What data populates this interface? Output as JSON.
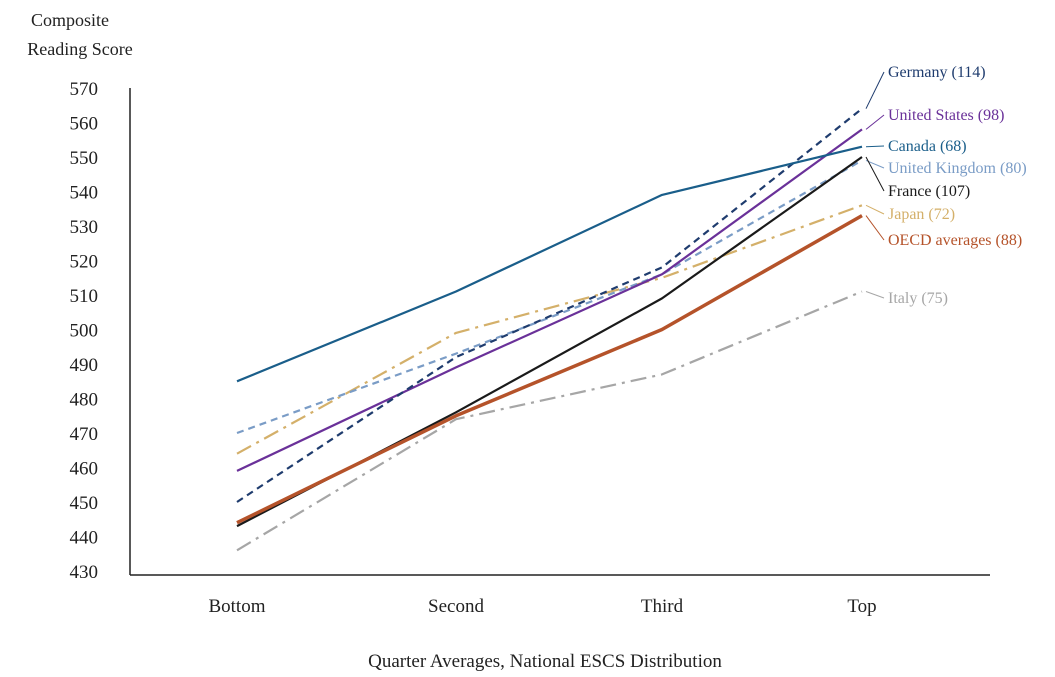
{
  "chart_data": {
    "type": "line",
    "ylabel_lines": [
      "Composite",
      "Reading Score"
    ],
    "xlabel": "Quarter Averages, National ESCS Distribution",
    "categories": [
      "Bottom",
      "Second",
      "Third",
      "Top"
    ],
    "ylim": [
      430,
      570
    ],
    "yticks": [
      430,
      440,
      450,
      460,
      470,
      480,
      490,
      500,
      510,
      520,
      530,
      540,
      550,
      560,
      570
    ],
    "grid": false,
    "legend": "inline labels at right end of each line",
    "series": [
      {
        "name": "Canada (68)",
        "values": [
          485,
          511,
          539,
          553
        ],
        "color": "#1a5e8a",
        "dash": "solid",
        "width": 2.2
      },
      {
        "name": "Germany (114)",
        "values": [
          450,
          492,
          518,
          564
        ],
        "color": "#1f3c6e",
        "dash": "dashed",
        "width": 2.2
      },
      {
        "name": "United States (98)",
        "values": [
          459,
          489,
          516,
          558
        ],
        "color": "#6a3199",
        "dash": "solid",
        "width": 2.2
      },
      {
        "name": "United Kingdom (80)",
        "values": [
          470,
          493,
          516,
          549
        ],
        "color": "#7a9cc6",
        "dash": "dashed",
        "width": 2.2
      },
      {
        "name": "France (107)",
        "values": [
          443,
          476,
          509,
          550
        ],
        "color": "#1a1a1a",
        "dash": "solid",
        "width": 2.2
      },
      {
        "name": "Japan (72)",
        "values": [
          464,
          499,
          515,
          536
        ],
        "color": "#d4b06a",
        "dash": "dashdot",
        "width": 2.2
      },
      {
        "name": "OECD averages (88)",
        "values": [
          444,
          475,
          500,
          533
        ],
        "color": "#b5532a",
        "dash": "solid",
        "width": 3.5
      },
      {
        "name": "Italy (75)",
        "values": [
          436,
          474,
          487,
          511
        ],
        "color": "#a6a6a6",
        "dash": "dashdot",
        "width": 2.2
      }
    ]
  }
}
